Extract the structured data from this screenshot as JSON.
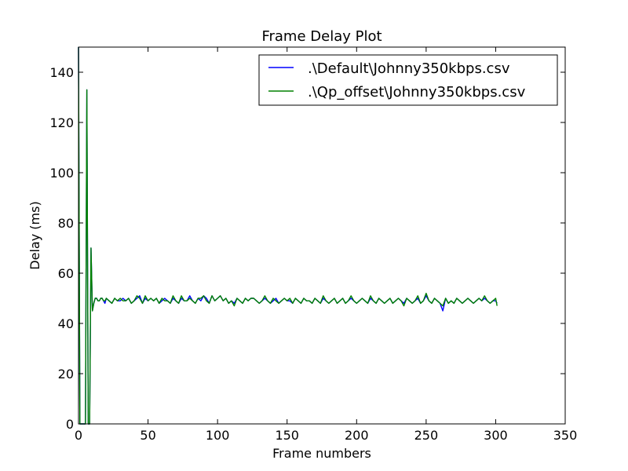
{
  "chart_data": {
    "type": "line",
    "title": "Frame Delay Plot",
    "xlabel": "Frame numbers",
    "ylabel": "Delay (ms)",
    "xlim": [
      0,
      350
    ],
    "ylim": [
      0,
      150
    ],
    "xticks": [
      0,
      50,
      100,
      150,
      200,
      250,
      300,
      350
    ],
    "yticks": [
      0,
      20,
      40,
      60,
      80,
      100,
      120,
      140
    ],
    "grid": false,
    "legend_position": "top-right",
    "series": [
      {
        "name": ".\\Default\\Johnny350kbps.csv",
        "color": "#0000ff",
        "x": [
          0,
          1,
          2,
          3,
          4,
          5,
          6,
          7,
          8,
          9,
          10,
          11,
          12,
          13,
          14,
          15,
          16,
          17,
          18,
          19,
          20,
          22,
          24,
          26,
          28,
          30,
          32,
          34,
          36,
          38,
          40,
          42,
          44,
          46,
          48,
          50,
          52,
          54,
          56,
          58,
          60,
          62,
          64,
          66,
          68,
          70,
          72,
          74,
          76,
          78,
          80,
          82,
          84,
          86,
          88,
          90,
          92,
          94,
          96,
          98,
          100,
          102,
          104,
          106,
          108,
          110,
          112,
          114,
          116,
          118,
          120,
          122,
          124,
          126,
          128,
          130,
          132,
          134,
          136,
          138,
          140,
          142,
          144,
          146,
          148,
          150,
          152,
          154,
          156,
          158,
          160,
          162,
          164,
          166,
          168,
          170,
          172,
          174,
          176,
          178,
          180,
          182,
          184,
          186,
          188,
          190,
          192,
          194,
          196,
          198,
          200,
          202,
          204,
          206,
          208,
          210,
          212,
          214,
          216,
          218,
          220,
          222,
          224,
          226,
          228,
          230,
          232,
          234,
          236,
          238,
          240,
          242,
          244,
          246,
          248,
          250,
          252,
          254,
          256,
          258,
          260,
          262,
          264,
          266,
          268,
          270,
          272,
          274,
          276,
          278,
          280,
          282,
          284,
          286,
          288,
          290,
          292,
          294,
          296,
          298,
          300,
          301
        ],
        "y": [
          150,
          0,
          0,
          0,
          0,
          0,
          133,
          0,
          0,
          70,
          45,
          48,
          50,
          50,
          49,
          49,
          50,
          50,
          49,
          48,
          50,
          49,
          48,
          50,
          49,
          49,
          50,
          49,
          50,
          48,
          49,
          50,
          51,
          48,
          50,
          49,
          50,
          49,
          50,
          48,
          49,
          50,
          49,
          48,
          50,
          49,
          48,
          50,
          49,
          49,
          51,
          49,
          48,
          50,
          49,
          51,
          50,
          48,
          51,
          49,
          50,
          51,
          49,
          50,
          48,
          49,
          48,
          50,
          49,
          48,
          50,
          49,
          50,
          50,
          49,
          48,
          49,
          50,
          49,
          48,
          49,
          50,
          48,
          49,
          50,
          49,
          49,
          48,
          50,
          49,
          48,
          50,
          49,
          49,
          48,
          50,
          49,
          48,
          50,
          49,
          48,
          49,
          50,
          48,
          49,
          50,
          48,
          49,
          50,
          49,
          48,
          49,
          50,
          49,
          48,
          50,
          49,
          48,
          50,
          49,
          48,
          49,
          50,
          48,
          49,
          50,
          49,
          48,
          50,
          49,
          48,
          49,
          50,
          48,
          49,
          51,
          49,
          48,
          50,
          49,
          48,
          45,
          50,
          48,
          49,
          48,
          50,
          49,
          48,
          49,
          50,
          49,
          48,
          49,
          50,
          49,
          50,
          49,
          48,
          49,
          49,
          48
        ]
      },
      {
        "name": ".\\Qp_offset\\Johnny350kbps.csv",
        "color": "#008000",
        "x": [
          0,
          1,
          2,
          3,
          4,
          5,
          6,
          7,
          8,
          9,
          10,
          11,
          12,
          13,
          14,
          15,
          16,
          17,
          18,
          19,
          20,
          22,
          24,
          26,
          28,
          30,
          32,
          34,
          36,
          38,
          40,
          42,
          44,
          46,
          48,
          50,
          52,
          54,
          56,
          58,
          60,
          62,
          64,
          66,
          68,
          70,
          72,
          74,
          76,
          78,
          80,
          82,
          84,
          86,
          88,
          90,
          92,
          94,
          96,
          98,
          100,
          102,
          104,
          106,
          108,
          110,
          112,
          114,
          116,
          118,
          120,
          122,
          124,
          126,
          128,
          130,
          132,
          134,
          136,
          138,
          140,
          142,
          144,
          146,
          148,
          150,
          152,
          154,
          156,
          158,
          160,
          162,
          164,
          166,
          168,
          170,
          172,
          174,
          176,
          178,
          180,
          182,
          184,
          186,
          188,
          190,
          192,
          194,
          196,
          198,
          200,
          202,
          204,
          206,
          208,
          210,
          212,
          214,
          216,
          218,
          220,
          222,
          224,
          226,
          228,
          230,
          232,
          234,
          236,
          238,
          240,
          242,
          244,
          246,
          248,
          250,
          252,
          254,
          256,
          258,
          260,
          262,
          264,
          266,
          268,
          270,
          272,
          274,
          276,
          278,
          280,
          282,
          284,
          286,
          288,
          290,
          292,
          294,
          296,
          298,
          300,
          301
        ],
        "y": [
          150,
          0,
          0,
          0,
          0,
          0,
          133,
          0,
          0,
          70,
          45,
          48,
          50,
          50,
          49,
          49,
          50,
          50,
          49,
          49,
          50,
          49,
          48,
          50,
          49,
          50,
          49,
          49,
          50,
          48,
          49,
          51,
          50,
          48,
          51,
          49,
          50,
          49,
          50,
          48,
          50,
          49,
          49,
          48,
          51,
          49,
          48,
          51,
          49,
          49,
          50,
          49,
          48,
          50,
          50,
          51,
          49,
          48,
          51,
          49,
          50,
          51,
          49,
          50,
          48,
          49,
          47,
          50,
          49,
          48,
          50,
          49,
          50,
          50,
          49,
          48,
          49,
          51,
          49,
          48,
          50,
          49,
          48,
          49,
          50,
          49,
          50,
          48,
          50,
          49,
          48,
          50,
          49,
          49,
          48,
          50,
          49,
          48,
          51,
          49,
          48,
          49,
          50,
          48,
          49,
          50,
          48,
          49,
          51,
          49,
          48,
          49,
          50,
          49,
          48,
          51,
          49,
          48,
          50,
          49,
          48,
          49,
          50,
          48,
          49,
          50,
          49,
          47,
          50,
          49,
          48,
          49,
          51,
          48,
          49,
          52,
          49,
          48,
          50,
          49,
          48,
          47,
          50,
          48,
          49,
          48,
          50,
          49,
          48,
          49,
          50,
          49,
          48,
          49,
          50,
          49,
          51,
          49,
          48,
          49,
          50,
          47
        ]
      }
    ]
  }
}
